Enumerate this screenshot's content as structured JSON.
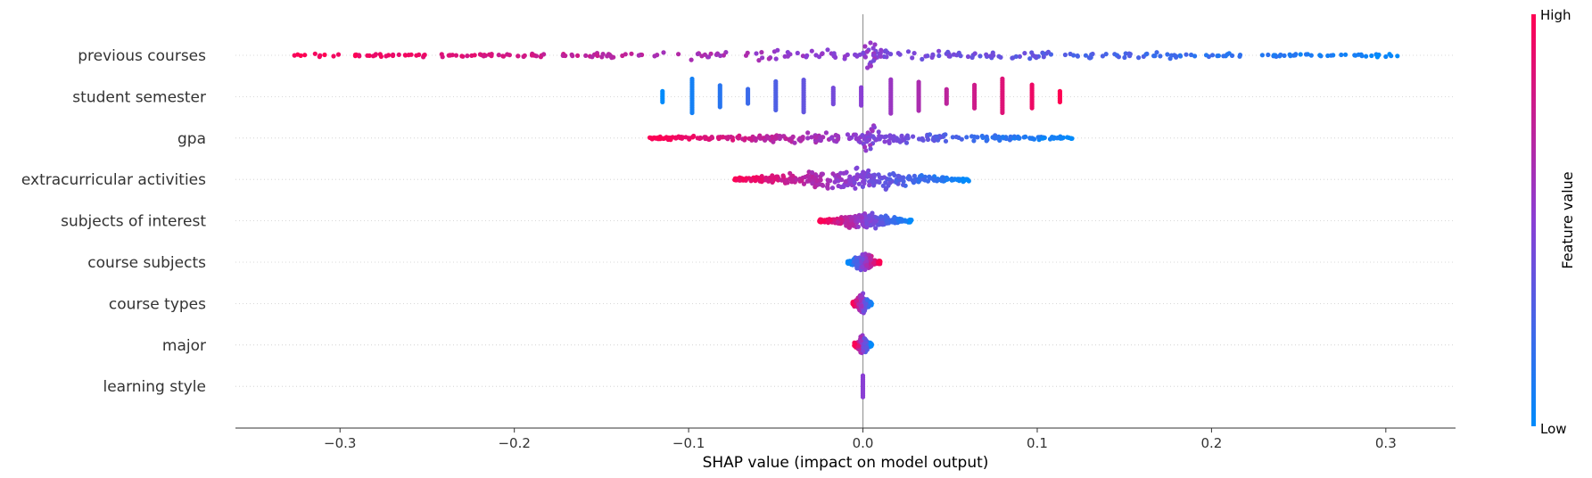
{
  "chart_data": {
    "type": "scatter",
    "subtype": "shap-beeswarm",
    "xlabel": "SHAP value (impact on model output)",
    "xlim": [
      -0.36,
      0.34
    ],
    "x_ticks": [
      -0.3,
      -0.2,
      -0.1,
      0.0,
      0.1,
      0.2,
      0.3
    ],
    "x_tick_labels": [
      "−0.3",
      "−0.2",
      "−0.1",
      "0.0",
      "0.1",
      "0.2",
      "0.3"
    ],
    "features": [
      {
        "name": "previous courses",
        "x_min": -0.328,
        "x_max": 0.31,
        "direction": "high_negative",
        "spread": 5,
        "center_pile": true
      },
      {
        "name": "student semester",
        "x_min": -0.115,
        "x_max": 0.115,
        "direction": "high_positive",
        "discrete": [
          -0.115,
          -0.098,
          -0.082,
          -0.066,
          -0.05,
          -0.034,
          -0.017,
          -0.001,
          0.016,
          0.032,
          0.048,
          0.064,
          0.08,
          0.097,
          0.113
        ]
      },
      {
        "name": "gpa",
        "x_min": -0.123,
        "x_max": 0.12,
        "direction": "high_negative",
        "spread": 5,
        "center_pile": true
      },
      {
        "name": "extracurricular activities",
        "x_min": -0.074,
        "x_max": 0.061,
        "direction": "high_negative",
        "spread": 14
      },
      {
        "name": "subjects of interest",
        "x_min": -0.025,
        "x_max": 0.028,
        "direction": "high_negative",
        "spread": 9
      },
      {
        "name": "course subjects",
        "x_min": -0.009,
        "x_max": 0.01,
        "direction": "high_positive",
        "spread": 9
      },
      {
        "name": "course types",
        "x_min": -0.006,
        "x_max": 0.005,
        "direction": "high_negative",
        "spread": 10
      },
      {
        "name": "major",
        "x_min": -0.005,
        "x_max": 0.005,
        "direction": "high_negative",
        "spread": 10
      },
      {
        "name": "learning style",
        "x_min": -0.001,
        "x_max": 0.001,
        "direction": "mixed",
        "spread": 12
      }
    ],
    "colorbar": {
      "title": "Feature value",
      "high_label": "High",
      "low_label": "Low",
      "high_color": "#ff0052",
      "low_color": "#008bfb"
    },
    "grid": false
  }
}
